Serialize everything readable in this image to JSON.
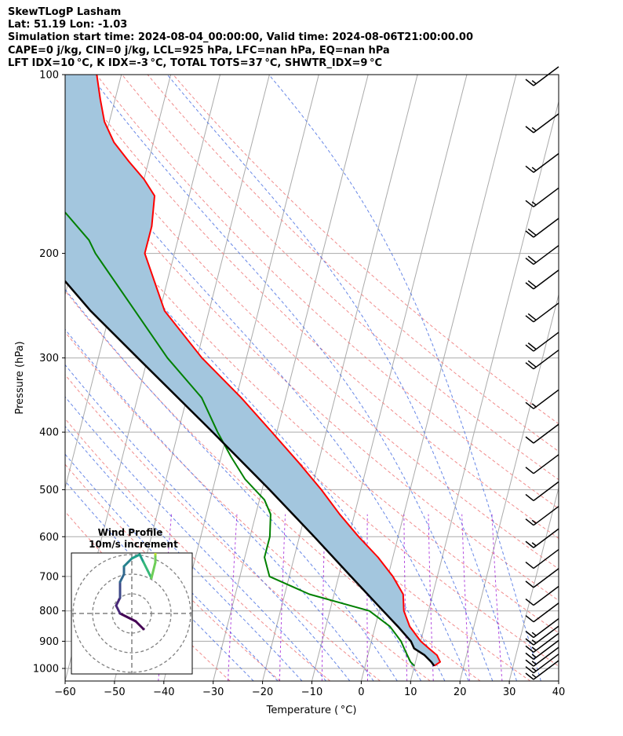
{
  "header": {
    "line1": "SkewTLogP Lasham",
    "line2": "Lat: 51.19   Lon: -1.03",
    "line3": "Simulation start time: 2024-08-04_00:00:00, Valid time: 2024-08-06T21:00:00.00",
    "line4": "CAPE=0 j/kg, CIN=0 j/kg, LCL=925 hPa, LFC=nan hPa, EQ=nan hPa",
    "line5": "LFT IDX=10 °C, K IDX=-3 °C, TOTAL TOTS=37 °C, SHWTR_IDX=9 °C"
  },
  "colors": {
    "temperature": "#ff0000",
    "dewpoint": "#008000",
    "parcel": "#000000",
    "cape_fill": "#a3c6de",
    "dry_adiabat": "#f08080",
    "moist_adiabat": "#4169e1",
    "mixing_ratio": "#9400d3",
    "isotherm": "#aaaaaa"
  },
  "chart_data": {
    "type": "line",
    "title": "SkewTLogP Lasham",
    "xlabel": "Temperature ( °C)",
    "ylabel": "Pressure (hPa)",
    "xlim": [
      -60,
      40
    ],
    "ylim": [
      1050,
      100
    ],
    "y_scale": "log",
    "grid": true,
    "x_ticks": [
      "−60",
      "−50",
      "−40",
      "−30",
      "−20",
      "−10",
      "0",
      "10",
      "20",
      "30",
      "40"
    ],
    "x_tick_values": [
      -60,
      -50,
      -40,
      -30,
      -20,
      -10,
      0,
      10,
      20,
      30,
      40
    ],
    "y_ticks": [
      "1000",
      "900",
      "800",
      "700",
      "600",
      "500",
      "400",
      "300",
      "200",
      "100"
    ],
    "y_tick_values": [
      1000,
      900,
      800,
      700,
      600,
      500,
      400,
      300,
      200,
      100
    ],
    "temperature": {
      "p": [
        990,
        975,
        950,
        925,
        900,
        850,
        800,
        750,
        700,
        650,
        600,
        550,
        500,
        450,
        400,
        350,
        300,
        250,
        200,
        180,
        160,
        150,
        140,
        130,
        120,
        110,
        100
      ],
      "t": [
        14,
        15,
        14,
        12,
        10,
        7,
        5,
        4,
        1,
        -3,
        -8,
        -13,
        -18,
        -24,
        -31,
        -39,
        -49,
        -59,
        -66,
        -66,
        -67,
        -70,
        -74,
        -78,
        -81,
        -83,
        -85
      ]
    },
    "dewpoint": {
      "p": [
        990,
        975,
        950,
        925,
        900,
        850,
        800,
        750,
        700,
        675,
        650,
        600,
        550,
        520,
        480,
        440,
        400,
        350,
        300,
        250,
        200,
        190,
        160,
        140,
        120,
        100
      ],
      "td": [
        10,
        9,
        8,
        7,
        6,
        3,
        -2,
        -15,
        -24,
        -25,
        -26,
        -26,
        -27,
        -29,
        -34,
        -38,
        -42,
        -47,
        -56,
        -65,
        -76,
        -78,
        -88,
        -89,
        -90,
        -93
      ]
    },
    "parcel": {
      "p": [
        990,
        975,
        950,
        925,
        900,
        850,
        800,
        700,
        600,
        500,
        400,
        300,
        250,
        200,
        150,
        100
      ],
      "t": [
        14,
        13.2,
        11.5,
        9,
        8,
        4.6,
        0.8,
        -7.5,
        -17,
        -28.5,
        -43,
        -62,
        -74,
        -87,
        -104,
        -127
      ]
    },
    "wind_barbs": {
      "p": [
        1000,
        975,
        950,
        925,
        900,
        875,
        850,
        800,
        750,
        700,
        650,
        600,
        550,
        500,
        450,
        400,
        350,
        300,
        280,
        250,
        220,
        200,
        180,
        160,
        140,
        120,
        100
      ],
      "speed_kt": [
        15,
        15,
        15,
        15,
        15,
        15,
        15,
        10,
        10,
        10,
        10,
        15,
        15,
        10,
        10,
        10,
        15,
        20,
        20,
        20,
        20,
        20,
        20,
        15,
        15,
        15,
        15
      ]
    },
    "hodograph": {
      "title": "Wind Profile",
      "subtitle": "10m/s increment",
      "rings_ms": [
        10,
        20,
        30
      ],
      "u": [
        3,
        1,
        -3,
        -4,
        -3,
        -3,
        -3,
        -2,
        -2,
        -1,
        0,
        2,
        3,
        4,
        5,
        6,
        6,
        6,
        6,
        6
      ],
      "v": [
        -4,
        -2,
        0,
        2,
        4,
        6,
        8,
        10,
        12,
        13,
        14,
        15,
        13,
        11,
        9,
        13,
        15,
        16,
        17,
        18
      ]
    }
  }
}
